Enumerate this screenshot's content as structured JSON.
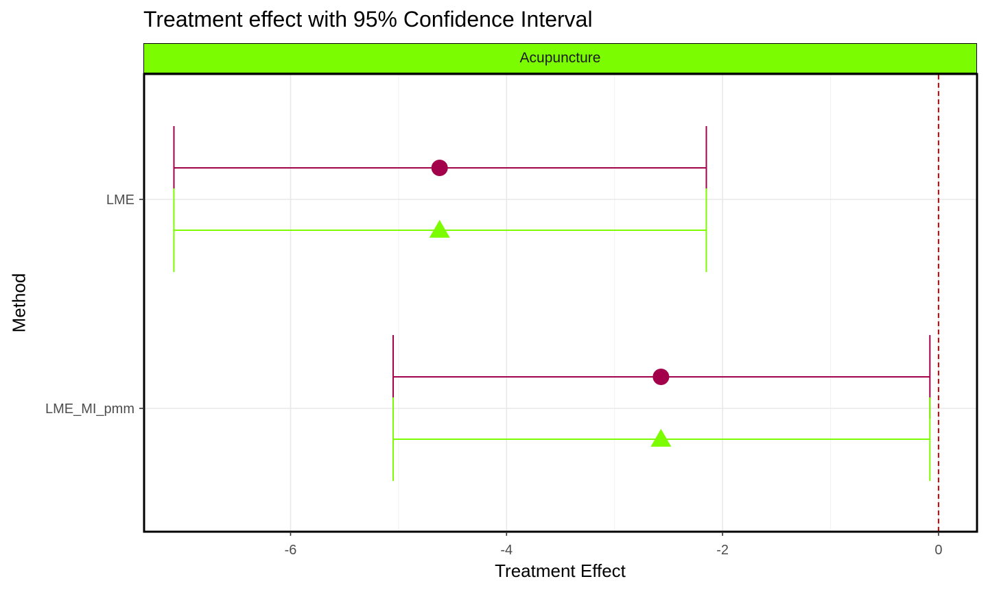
{
  "chart_data": {
    "type": "errorbar",
    "title": "Treatment effect with 95% Confidence Interval",
    "facet_label": "Acupuncture",
    "xlabel": "Treatment Effect",
    "ylabel": "Method",
    "xlim": [
      -7.35,
      0.35
    ],
    "x_ticks": [
      -6,
      -4,
      -2,
      0
    ],
    "x_tick_labels": [
      "-6",
      "-4",
      "-2",
      "0"
    ],
    "categories": [
      "LME",
      "LME_MI_pmm"
    ],
    "reference_line": {
      "x": 0,
      "style": "dashed",
      "color": "#cc0000"
    },
    "grid": true,
    "series": [
      {
        "marker": "circle",
        "color": "#a3004c",
        "points": [
          {
            "category": "LME",
            "estimate": -4.62,
            "lower": -7.08,
            "upper": -2.15
          },
          {
            "category": "LME_MI_pmm",
            "estimate": -2.57,
            "lower": -5.05,
            "upper": -0.08
          }
        ]
      },
      {
        "marker": "triangle",
        "color": "#7cfc00",
        "points": [
          {
            "category": "LME",
            "estimate": -4.62,
            "lower": -7.08,
            "upper": -2.15
          },
          {
            "category": "LME_MI_pmm",
            "estimate": -2.57,
            "lower": -5.05,
            "upper": -0.08
          }
        ]
      }
    ]
  }
}
